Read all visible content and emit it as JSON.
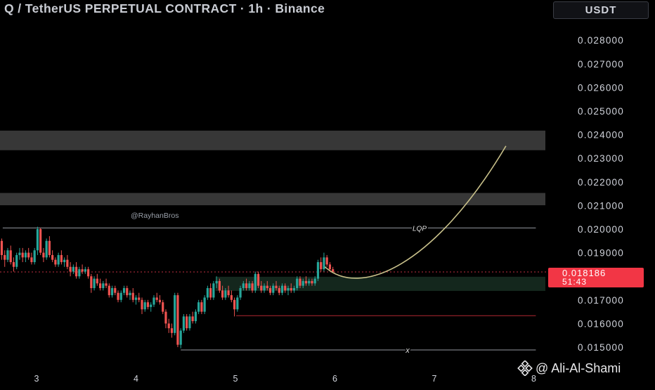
{
  "header": {
    "title": "Q / TetherUS PERPETUAL CONTRACT · 1h · Binance",
    "currency": "USDT"
  },
  "watermark": {
    "author": "@ Ali-Al-Shami",
    "icon": "tradingview-diamond-logo-icon"
  },
  "colors": {
    "background": "#000000",
    "up": "#26a69a",
    "down": "#ef5350",
    "price_badge": "#f23645",
    "zone": "#3a3a3a",
    "demand_zone": "#15291f",
    "projection": "#c8c08a",
    "level_line": "#9598a1",
    "stop_line": "#b22833"
  },
  "chart_data": {
    "type": "candlestick",
    "symbol": "Q / TetherUS PERPETUAL CONTRACT",
    "interval": "1h",
    "exchange": "Binance",
    "y_axis": {
      "ticks": [
        "0.028000",
        "0.027000",
        "0.026000",
        "0.025000",
        "0.024000",
        "0.023000",
        "0.022000",
        "0.021000",
        "0.020000",
        "0.019000",
        "0.017000",
        "0.016000",
        "0.015000"
      ],
      "range": [
        0.0144,
        0.0294
      ],
      "position": "right"
    },
    "x_axis": {
      "ticks": [
        {
          "label": "3",
          "day": 3
        },
        {
          "label": "4",
          "day": 4
        },
        {
          "label": "5",
          "day": 5
        },
        {
          "label": "6",
          "day": 6
        },
        {
          "label": "7",
          "day": 7
        },
        {
          "label": "8",
          "day": 8
        }
      ],
      "range": [
        2.62,
        8.0
      ]
    },
    "last_price": {
      "value": 0.018186,
      "label": "0.018186",
      "countdown": "51:43"
    },
    "annotations": {
      "handle": "@RayhanBros",
      "lqp": {
        "label": "LQP",
        "price": 0.02005,
        "from_day": 2.66,
        "to_day": 7.95
      },
      "x_level": {
        "label": "x",
        "price": 0.01488,
        "from_day": 4.45,
        "to_day": 7.95
      },
      "stop_level": {
        "price": 0.01633,
        "from_day": 5.05,
        "to_day": 7.95
      }
    },
    "zones": [
      {
        "name": "resistance-zone-upper",
        "from_price": 0.02334,
        "to_price": 0.02417,
        "color": "#3a3a3a"
      },
      {
        "name": "resistance-zone-lower",
        "from_price": 0.02101,
        "to_price": 0.02153,
        "color": "#3a3a3a"
      },
      {
        "name": "demand-zone",
        "from_price": 0.01738,
        "to_price": 0.01798,
        "from_day": 4.8,
        "color": "#15291f"
      }
    ],
    "projection": {
      "points": [
        [
          5.9,
          0.0184
        ],
        [
          6.25,
          0.01781
        ],
        [
          7.0,
          0.0196
        ],
        [
          7.72,
          0.02352
        ]
      ]
    },
    "candles": [
      [
        2.62,
        0.0199,
        0.02,
        0.0193,
        0.0195
      ],
      [
        2.65,
        0.0195,
        0.0196,
        0.0187,
        0.0189
      ],
      [
        2.68,
        0.0189,
        0.0191,
        0.0184,
        0.0187
      ],
      [
        2.71,
        0.0187,
        0.0192,
        0.0186,
        0.0191
      ],
      [
        2.74,
        0.0191,
        0.0193,
        0.0185,
        0.0186
      ],
      [
        2.77,
        0.0186,
        0.0188,
        0.0182,
        0.0184
      ],
      [
        2.8,
        0.0184,
        0.019,
        0.0183,
        0.0189
      ],
      [
        2.83,
        0.0189,
        0.0192,
        0.0187,
        0.019
      ],
      [
        2.86,
        0.019,
        0.0192,
        0.0186,
        0.0188
      ],
      [
        2.89,
        0.0188,
        0.0191,
        0.0186,
        0.019
      ],
      [
        2.92,
        0.019,
        0.0192,
        0.0187,
        0.0188
      ],
      [
        2.95,
        0.0188,
        0.019,
        0.0185,
        0.0186
      ],
      [
        2.98,
        0.0186,
        0.0192,
        0.0185,
        0.0191
      ],
      [
        3.01,
        0.0191,
        0.0201,
        0.0189,
        0.02
      ],
      [
        3.04,
        0.02,
        0.02005,
        0.0189,
        0.019
      ],
      [
        3.07,
        0.019,
        0.0192,
        0.0186,
        0.0188
      ],
      [
        3.1,
        0.0188,
        0.0196,
        0.0187,
        0.0195
      ],
      [
        3.13,
        0.0195,
        0.0197,
        0.0188,
        0.0189
      ],
      [
        3.16,
        0.0189,
        0.0191,
        0.0186,
        0.0187
      ],
      [
        3.19,
        0.0187,
        0.0188,
        0.0184,
        0.0185
      ],
      [
        3.22,
        0.0185,
        0.019,
        0.0184,
        0.0189
      ],
      [
        3.25,
        0.0189,
        0.0191,
        0.0185,
        0.0186
      ],
      [
        3.28,
        0.0186,
        0.0188,
        0.0184,
        0.0187
      ],
      [
        3.31,
        0.0187,
        0.0189,
        0.0183,
        0.0184
      ],
      [
        3.34,
        0.0184,
        0.0186,
        0.018,
        0.0182
      ],
      [
        3.37,
        0.0182,
        0.0185,
        0.0181,
        0.0184
      ],
      [
        3.4,
        0.0184,
        0.0186,
        0.0179,
        0.018
      ],
      [
        3.43,
        0.018,
        0.0184,
        0.0179,
        0.0183
      ],
      [
        3.46,
        0.0183,
        0.0185,
        0.0181,
        0.0182
      ],
      [
        3.49,
        0.0182,
        0.0184,
        0.0181,
        0.0183
      ],
      [
        3.52,
        0.0183,
        0.0184,
        0.0179,
        0.018
      ],
      [
        3.55,
        0.018,
        0.0181,
        0.0173,
        0.0175
      ],
      [
        3.58,
        0.0175,
        0.018,
        0.0174,
        0.0179
      ],
      [
        3.61,
        0.0179,
        0.0181,
        0.0176,
        0.0177
      ],
      [
        3.64,
        0.0177,
        0.0179,
        0.0174,
        0.0175
      ],
      [
        3.67,
        0.0175,
        0.0178,
        0.0174,
        0.0177
      ],
      [
        3.7,
        0.0177,
        0.0179,
        0.0175,
        0.0176
      ],
      [
        3.73,
        0.0176,
        0.0177,
        0.0171,
        0.0172
      ],
      [
        3.76,
        0.0172,
        0.0176,
        0.0171,
        0.0175
      ],
      [
        3.79,
        0.0175,
        0.0176,
        0.0172,
        0.0173
      ],
      [
        3.82,
        0.0173,
        0.0174,
        0.0169,
        0.017
      ],
      [
        3.85,
        0.017,
        0.0174,
        0.0169,
        0.0173
      ],
      [
        3.88,
        0.0173,
        0.0176,
        0.0172,
        0.0175
      ],
      [
        3.91,
        0.0175,
        0.0176,
        0.0171,
        0.0172
      ],
      [
        3.94,
        0.0172,
        0.0174,
        0.017,
        0.0173
      ],
      [
        3.97,
        0.0173,
        0.0175,
        0.0169,
        0.017
      ],
      [
        4.0,
        0.017,
        0.0172,
        0.0168,
        0.0171
      ],
      [
        4.03,
        0.0171,
        0.0173,
        0.0169,
        0.017
      ],
      [
        4.06,
        0.017,
        0.0171,
        0.0164,
        0.0166
      ],
      [
        4.09,
        0.0166,
        0.017,
        0.0165,
        0.0169
      ],
      [
        4.12,
        0.0169,
        0.017,
        0.0166,
        0.0167
      ],
      [
        4.15,
        0.0167,
        0.0169,
        0.0165,
        0.0168
      ],
      [
        4.18,
        0.0168,
        0.0172,
        0.0167,
        0.0171
      ],
      [
        4.21,
        0.0171,
        0.0173,
        0.0169,
        0.017
      ],
      [
        4.24,
        0.017,
        0.0172,
        0.0168,
        0.0169
      ],
      [
        4.27,
        0.0169,
        0.017,
        0.0164,
        0.0165
      ],
      [
        4.3,
        0.0165,
        0.0166,
        0.0158,
        0.016
      ],
      [
        4.33,
        0.016,
        0.0162,
        0.0156,
        0.0158
      ],
      [
        4.36,
        0.0158,
        0.016,
        0.0154,
        0.0156
      ],
      [
        4.39,
        0.0156,
        0.0173,
        0.0155,
        0.0172
      ],
      [
        4.42,
        0.0172,
        0.0173,
        0.015,
        0.0151
      ],
      [
        4.45,
        0.0151,
        0.0158,
        0.01495,
        0.0157
      ],
      [
        4.48,
        0.0157,
        0.0164,
        0.0156,
        0.0163
      ],
      [
        4.51,
        0.0163,
        0.0164,
        0.0157,
        0.0158
      ],
      [
        4.54,
        0.0158,
        0.0164,
        0.0157,
        0.0163
      ],
      [
        4.57,
        0.0163,
        0.0165,
        0.016,
        0.0161
      ],
      [
        4.6,
        0.0161,
        0.0166,
        0.016,
        0.0165
      ],
      [
        4.63,
        0.0165,
        0.017,
        0.0164,
        0.0169
      ],
      [
        4.66,
        0.0169,
        0.017,
        0.0164,
        0.0165
      ],
      [
        4.69,
        0.0165,
        0.0172,
        0.0164,
        0.0171
      ],
      [
        4.72,
        0.0171,
        0.0176,
        0.017,
        0.0175
      ],
      [
        4.75,
        0.0175,
        0.0177,
        0.017,
        0.0171
      ],
      [
        4.78,
        0.0171,
        0.0178,
        0.017,
        0.0177
      ],
      [
        4.81,
        0.0177,
        0.018,
        0.0175,
        0.0178
      ],
      [
        4.84,
        0.0178,
        0.0179,
        0.0173,
        0.0174
      ],
      [
        4.87,
        0.0174,
        0.0176,
        0.017,
        0.0171
      ],
      [
        4.9,
        0.0171,
        0.0175,
        0.017,
        0.0174
      ],
      [
        4.93,
        0.0174,
        0.0176,
        0.0171,
        0.0172
      ],
      [
        4.96,
        0.0172,
        0.0174,
        0.0169,
        0.017
      ],
      [
        4.99,
        0.017,
        0.0171,
        0.0163,
        0.0166
      ],
      [
        5.02,
        0.0166,
        0.0172,
        0.0165,
        0.0171
      ],
      [
        5.05,
        0.0171,
        0.0176,
        0.017,
        0.0175
      ],
      [
        5.08,
        0.0175,
        0.0178,
        0.0174,
        0.0177
      ],
      [
        5.11,
        0.0177,
        0.0179,
        0.0174,
        0.0175
      ],
      [
        5.14,
        0.0175,
        0.0178,
        0.0174,
        0.0177
      ],
      [
        5.17,
        0.0177,
        0.0178,
        0.0173,
        0.0174
      ],
      [
        5.2,
        0.0174,
        0.0182,
        0.0173,
        0.0181
      ],
      [
        5.23,
        0.0181,
        0.0182,
        0.0175,
        0.0176
      ],
      [
        5.26,
        0.0176,
        0.0178,
        0.0173,
        0.0174
      ],
      [
        5.29,
        0.0174,
        0.0177,
        0.0173,
        0.0176
      ],
      [
        5.32,
        0.0176,
        0.0178,
        0.0174,
        0.0175
      ],
      [
        5.35,
        0.0175,
        0.0176,
        0.0172,
        0.0173
      ],
      [
        5.38,
        0.0173,
        0.0177,
        0.0172,
        0.0176
      ],
      [
        5.41,
        0.0176,
        0.0178,
        0.0174,
        0.0175
      ],
      [
        5.44,
        0.0175,
        0.0176,
        0.0172,
        0.0173
      ],
      [
        5.47,
        0.0173,
        0.0177,
        0.0172,
        0.0176
      ],
      [
        5.5,
        0.0176,
        0.0177,
        0.0173,
        0.0174
      ],
      [
        5.53,
        0.0174,
        0.0176,
        0.0172,
        0.0175
      ],
      [
        5.56,
        0.0175,
        0.0177,
        0.0173,
        0.0174
      ],
      [
        5.59,
        0.0174,
        0.0176,
        0.0173,
        0.0175
      ],
      [
        5.62,
        0.0175,
        0.018,
        0.0174,
        0.0179
      ],
      [
        5.65,
        0.0179,
        0.018,
        0.0175,
        0.0176
      ],
      [
        5.68,
        0.0176,
        0.0179,
        0.0175,
        0.0178
      ],
      [
        5.71,
        0.0178,
        0.018,
        0.0176,
        0.0177
      ],
      [
        5.74,
        0.0177,
        0.0179,
        0.0176,
        0.0178
      ],
      [
        5.77,
        0.0178,
        0.0179,
        0.0176,
        0.0177
      ],
      [
        5.8,
        0.0177,
        0.018,
        0.0176,
        0.0179
      ],
      [
        5.83,
        0.0179,
        0.0187,
        0.0178,
        0.0186
      ],
      [
        5.86,
        0.0186,
        0.0188,
        0.0182,
        0.0183
      ],
      [
        5.89,
        0.0183,
        0.019,
        0.0182,
        0.0188
      ],
      [
        5.92,
        0.0188,
        0.0189,
        0.0184,
        0.0185
      ],
      [
        5.95,
        0.0185,
        0.0186,
        0.0182,
        0.0183
      ],
      [
        5.98,
        0.0183,
        0.0184,
        0.01815,
        0.01819
      ]
    ]
  }
}
